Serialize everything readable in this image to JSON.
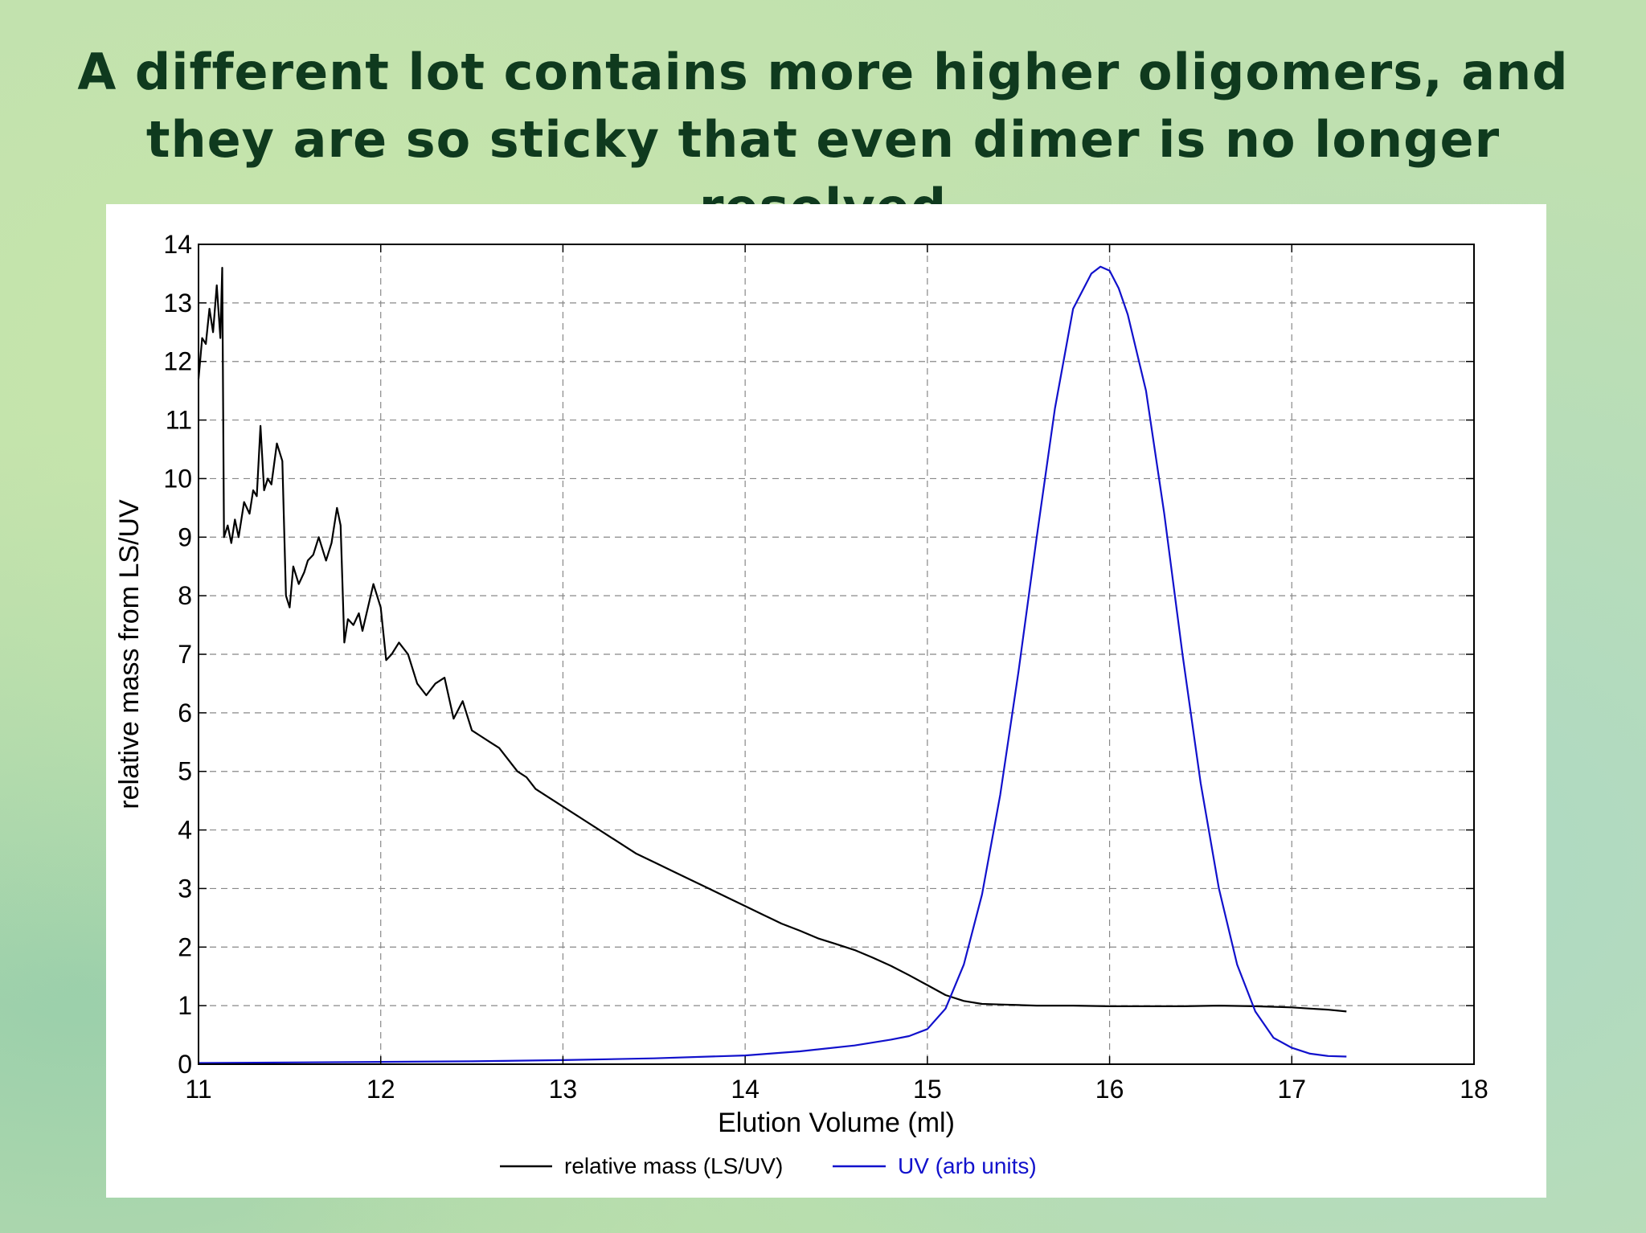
{
  "slide": {
    "title": "A different lot contains more higher oligomers, and they are so sticky that even dimer is no longer resolved"
  },
  "chart_data": {
    "type": "line",
    "title": "",
    "xlabel": "Elution Volume (ml)",
    "ylabel": "relative mass from LS/UV",
    "xlim": [
      11,
      18
    ],
    "ylim": [
      0,
      14
    ],
    "xticks": [
      11,
      12,
      13,
      14,
      15,
      16,
      17,
      18
    ],
    "yticks": [
      0,
      1,
      2,
      3,
      4,
      5,
      6,
      7,
      8,
      9,
      10,
      11,
      12,
      13,
      14
    ],
    "grid": true,
    "legend_position": "bottom-center",
    "series": [
      {
        "name": "relative mass (LS/UV)",
        "color": "#000000",
        "x": [
          11.0,
          11.02,
          11.04,
          11.06,
          11.08,
          11.1,
          11.12,
          11.13,
          11.14,
          11.16,
          11.18,
          11.2,
          11.22,
          11.25,
          11.28,
          11.3,
          11.32,
          11.34,
          11.36,
          11.38,
          11.4,
          11.43,
          11.46,
          11.48,
          11.5,
          11.52,
          11.55,
          11.58,
          11.6,
          11.63,
          11.66,
          11.7,
          11.73,
          11.76,
          11.78,
          11.8,
          11.82,
          11.85,
          11.88,
          11.9,
          11.93,
          11.96,
          12.0,
          12.03,
          12.06,
          12.1,
          12.15,
          12.2,
          12.25,
          12.3,
          12.35,
          12.4,
          12.45,
          12.5,
          12.55,
          12.6,
          12.65,
          12.7,
          12.75,
          12.8,
          12.85,
          12.9,
          13.0,
          13.1,
          13.2,
          13.3,
          13.4,
          13.5,
          13.6,
          13.7,
          13.8,
          13.9,
          14.0,
          14.1,
          14.2,
          14.3,
          14.4,
          14.5,
          14.6,
          14.7,
          14.8,
          14.9,
          15.0,
          15.1,
          15.2,
          15.3,
          15.4,
          15.5,
          15.6,
          15.8,
          16.0,
          16.2,
          16.4,
          16.6,
          16.8,
          17.0,
          17.1,
          17.2,
          17.3
        ],
        "y": [
          11.7,
          12.4,
          12.3,
          12.9,
          12.5,
          13.3,
          12.4,
          13.6,
          9.0,
          9.2,
          8.9,
          9.3,
          9.0,
          9.6,
          9.4,
          9.8,
          9.7,
          10.9,
          9.8,
          10.0,
          9.9,
          10.6,
          10.3,
          8.0,
          7.8,
          8.5,
          8.2,
          8.4,
          8.6,
          8.7,
          9.0,
          8.6,
          8.9,
          9.5,
          9.2,
          7.2,
          7.6,
          7.5,
          7.7,
          7.4,
          7.8,
          8.2,
          7.8,
          6.9,
          7.0,
          7.2,
          7.0,
          6.5,
          6.3,
          6.5,
          6.6,
          5.9,
          6.2,
          5.7,
          5.6,
          5.5,
          5.4,
          5.2,
          5.0,
          4.9,
          4.7,
          4.6,
          4.4,
          4.2,
          4.0,
          3.8,
          3.6,
          3.45,
          3.3,
          3.15,
          3.0,
          2.85,
          2.7,
          2.55,
          2.4,
          2.28,
          2.15,
          2.05,
          1.95,
          1.82,
          1.68,
          1.52,
          1.35,
          1.18,
          1.08,
          1.03,
          1.02,
          1.01,
          1.0,
          1.0,
          0.99,
          0.99,
          0.99,
          1.0,
          0.99,
          0.97,
          0.95,
          0.93,
          0.9
        ]
      },
      {
        "name": "UV (arb units)",
        "color": "#1111cc",
        "x": [
          11.0,
          11.5,
          12.0,
          12.5,
          13.0,
          13.5,
          14.0,
          14.3,
          14.6,
          14.8,
          14.9,
          15.0,
          15.1,
          15.2,
          15.3,
          15.4,
          15.5,
          15.6,
          15.7,
          15.8,
          15.9,
          15.95,
          16.0,
          16.05,
          16.1,
          16.2,
          16.3,
          16.4,
          16.5,
          16.6,
          16.7,
          16.8,
          16.9,
          17.0,
          17.1,
          17.2,
          17.3
        ],
        "y": [
          0.02,
          0.03,
          0.04,
          0.05,
          0.07,
          0.1,
          0.15,
          0.22,
          0.32,
          0.42,
          0.48,
          0.6,
          0.95,
          1.7,
          2.9,
          4.6,
          6.7,
          9.0,
          11.2,
          12.9,
          13.5,
          13.62,
          13.55,
          13.25,
          12.8,
          11.5,
          9.4,
          7.0,
          4.8,
          3.0,
          1.7,
          0.9,
          0.45,
          0.28,
          0.18,
          0.14,
          0.13
        ]
      }
    ]
  }
}
